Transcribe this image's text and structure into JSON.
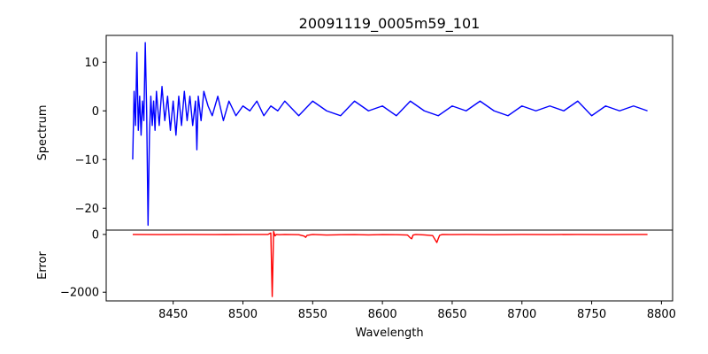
{
  "chart_data": [
    {
      "type": "line",
      "title": "20091119_0005m59_101",
      "xlabel": "",
      "ylabel": "Spectrum",
      "xlim": [
        8402,
        8808
      ],
      "ylim": [
        -24.5,
        15.5
      ],
      "yticks": [
        10,
        0,
        -10,
        -20
      ],
      "ytick_labels": [
        "10",
        "0",
        "−10",
        "−20"
      ],
      "series": [
        {
          "name": "spectrum",
          "color": "#0000ff",
          "x": [
            8421,
            8422,
            8423,
            8424,
            8425,
            8426,
            8427,
            8428,
            8429,
            8430,
            8431,
            8432,
            8433,
            8434,
            8435,
            8436,
            8437,
            8438,
            8440,
            8442,
            8444,
            8446,
            8448,
            8450,
            8452,
            8454,
            8456,
            8458,
            8460,
            8462,
            8464,
            8466,
            8467,
            8468,
            8470,
            8472,
            8475,
            8478,
            8482,
            8486,
            8490,
            8495,
            8500,
            8505,
            8510,
            8515,
            8520,
            8525,
            8530,
            8540,
            8550,
            8560,
            8570,
            8580,
            8590,
            8600,
            8610,
            8620,
            8630,
            8640,
            8650,
            8660,
            8670,
            8680,
            8690,
            8700,
            8710,
            8720,
            8730,
            8740,
            8750,
            8760,
            8770,
            8780,
            8790
          ],
          "y": [
            -10,
            4,
            -3,
            12,
            -4,
            3,
            -5,
            2,
            -2,
            14,
            0,
            -23.5,
            -5,
            3,
            -3,
            2,
            -4,
            4,
            -3,
            5,
            -2,
            3,
            -4,
            2,
            -5,
            3,
            -3,
            4,
            -2,
            3,
            -3,
            2,
            -8,
            3,
            -2,
            4,
            1,
            -1,
            3,
            -2,
            2,
            -1,
            1,
            0,
            2,
            -1,
            1,
            0,
            2,
            -1,
            2,
            0,
            -1,
            2,
            0,
            1,
            -1,
            2,
            0,
            -1,
            1,
            0,
            2,
            0,
            -1,
            1,
            0,
            1,
            0,
            2,
            -1,
            1,
            0,
            1,
            0
          ]
        }
      ]
    },
    {
      "type": "line",
      "title": "",
      "xlabel": "Wavelength",
      "ylabel": "Error",
      "xlim": [
        8402,
        8808
      ],
      "ylim": [
        -2300,
        150
      ],
      "yticks": [
        0,
        -2000
      ],
      "ytick_labels": [
        "0",
        "−2000"
      ],
      "xticks": [
        8450,
        8500,
        8550,
        8600,
        8650,
        8700,
        8750,
        8800
      ],
      "xtick_labels": [
        "8450",
        "8500",
        "8550",
        "8600",
        "8650",
        "8700",
        "8750",
        "8800"
      ],
      "series": [
        {
          "name": "error",
          "color": "#ff0000",
          "x": [
            8421,
            8440,
            8460,
            8480,
            8500,
            8518,
            8520,
            8521,
            8522,
            8523,
            8524,
            8526,
            8530,
            8540,
            8544,
            8545,
            8546,
            8550,
            8560,
            8570,
            8580,
            8590,
            8600,
            8610,
            8618,
            8620,
            8621,
            8622,
            8624,
            8630,
            8636,
            8638,
            8639,
            8640,
            8641,
            8643,
            8650,
            8660,
            8680,
            8700,
            8720,
            8740,
            8760,
            8780,
            8790
          ],
          "y": [
            0,
            -5,
            0,
            -5,
            0,
            0,
            50,
            -2150,
            100,
            -50,
            0,
            -10,
            0,
            -10,
            -60,
            -100,
            -30,
            0,
            -20,
            -10,
            -5,
            -15,
            -5,
            -10,
            -20,
            -120,
            -150,
            -20,
            0,
            -15,
            -40,
            -200,
            -280,
            -150,
            -30,
            0,
            -5,
            0,
            -10,
            0,
            -5,
            0,
            -5,
            0,
            0
          ]
        }
      ]
    }
  ]
}
